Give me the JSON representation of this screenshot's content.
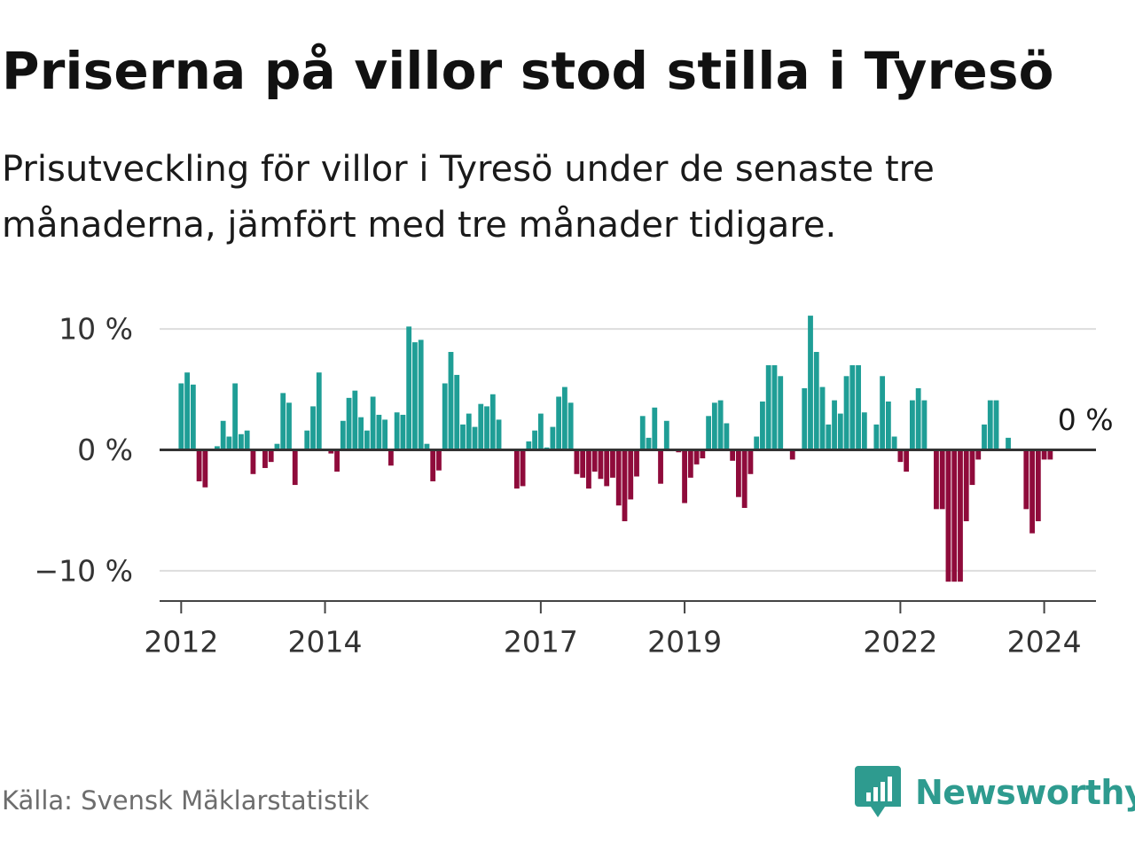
{
  "title": "Priserna på villor stod stilla i Tyresö",
  "subtitle": "Prisutveckling för villor i Tyresö under de senaste tre månaderna, jämfört med tre månader tidigare.",
  "source": "Källa: Svensk Mäklarstatistik",
  "brand": "Newsworthy",
  "colors": {
    "positive": "#1f9e96",
    "negative": "#8f0b3b",
    "gridline": "#dddddd",
    "axis": "#444444",
    "brand": "#2e9b8f"
  },
  "chart_data": {
    "type": "bar",
    "title": "Priserna på villor stod stilla i Tyresö",
    "subtitle": "Prisutveckling för villor i Tyresö under de senaste tre månaderna, jämfört med tre månader tidigare.",
    "xlabel": "",
    "ylabel": "",
    "unit": "%",
    "ylim": [
      -12.5,
      12.5
    ],
    "xlim": [
      2011.7,
      2024.72
    ],
    "grid": true,
    "yticks": [
      10,
      0,
      -10
    ],
    "ytick_labels": [
      "10 %",
      "0 %",
      "−10 %"
    ],
    "xticks": [
      2012,
      2014,
      2017,
      2019,
      2022,
      2024
    ],
    "xtick_labels": [
      "2012",
      "2014",
      "2017",
      "2019",
      "2022",
      "2024"
    ],
    "start": "2012-01",
    "frequency": "monthly",
    "annotation": {
      "text": "0 %",
      "month": "2024-07"
    },
    "values": [
      5.5,
      6.4,
      5.4,
      -2.6,
      -3.1,
      0.1,
      0.3,
      2.4,
      1.1,
      5.5,
      1.3,
      1.6,
      -2.0,
      0,
      -1.5,
      -1.0,
      0.5,
      4.7,
      3.9,
      -2.9,
      0,
      1.6,
      3.6,
      6.4,
      0,
      -0.3,
      -1.8,
      2.4,
      4.3,
      4.9,
      2.7,
      1.6,
      4.4,
      2.9,
      2.5,
      -1.3,
      3.1,
      2.9,
      10.2,
      8.9,
      9.1,
      0.5,
      -2.6,
      -1.7,
      5.5,
      8.1,
      6.2,
      2.1,
      3.0,
      1.9,
      3.8,
      3.6,
      4.6,
      2.5,
      0,
      0,
      -3.2,
      -3.0,
      0.7,
      1.6,
      3.0,
      0.2,
      1.9,
      4.4,
      5.2,
      3.9,
      -2.0,
      -2.3,
      -3.2,
      -1.8,
      -2.4,
      -3.0,
      -2.3,
      -4.6,
      -5.9,
      -4.1,
      -2.2,
      2.8,
      1.0,
      3.5,
      -2.8,
      2.4,
      0,
      -0.2,
      -4.4,
      -2.3,
      -1.2,
      -0.7,
      2.8,
      3.9,
      4.1,
      2.2,
      -0.9,
      -3.9,
      -4.8,
      -2.0,
      1.1,
      4.0,
      7.0,
      7.0,
      6.1,
      0,
      -0.8,
      0,
      5.1,
      11.1,
      8.1,
      5.2,
      2.1,
      4.1,
      3.0,
      6.1,
      7.0,
      7.0,
      3.1,
      0,
      2.1,
      6.1,
      4.0,
      1.1,
      -1.0,
      -1.8,
      4.1,
      5.1,
      4.1,
      0,
      -4.9,
      -4.9,
      -10.9,
      -10.9,
      -10.9,
      -5.9,
      -2.9,
      -0.8,
      2.1,
      4.1,
      4.1,
      0,
      1.0,
      0,
      0,
      -4.9,
      -6.9,
      -5.9,
      -0.8,
      -0.8,
      0
    ]
  }
}
